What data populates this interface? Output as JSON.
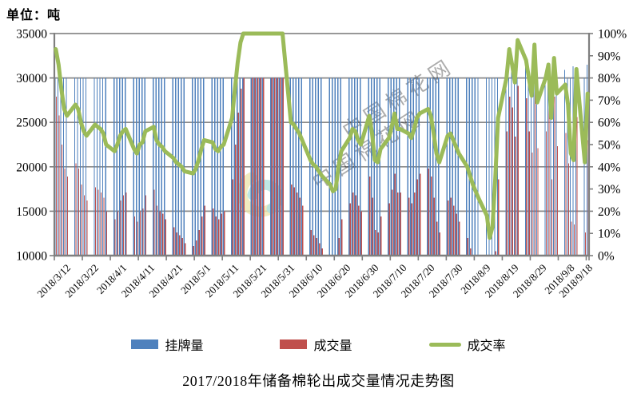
{
  "unit_label": "单位：吨",
  "title": "2017/2018年储备棉轮出成交量情况走势图",
  "legend": {
    "items": [
      {
        "label": "挂牌量",
        "type": "bar",
        "color": "#4F81BD"
      },
      {
        "label": "成交量",
        "type": "bar",
        "color": "#C0504D"
      },
      {
        "label": "成交率",
        "type": "line",
        "color": "#9BBB59"
      }
    ]
  },
  "watermark": {
    "text": "中国棉花网",
    "logo_colors": [
      "#EDE7B0",
      "#B3E4E0"
    ],
    "text_color": "#c9c9c9"
  },
  "chart_data": {
    "type": "bar+line combo",
    "title": "2017/2018年储备棉轮出成交量情况走势图",
    "unit": "吨",
    "grid": true,
    "legend_position": "bottom",
    "colors": {
      "gridline": "#8a8a8a",
      "axis": "#7f7f7f"
    },
    "x_axis": {
      "start_date": "2018/3/12",
      "end_date": "2018/9/18",
      "label_rotation_deg": -45,
      "tick_labels": [
        "2018/3/12",
        "2018/3/22",
        "2018/4/1",
        "2018/4/11",
        "2018/4/21",
        "2018/5/1",
        "2018/5/11",
        "2018/5/21",
        "2018/5/31",
        "2018/6/10",
        "2018/6/20",
        "2018/6/30",
        "2018/7/10",
        "2018/7/20",
        "2018/7/30",
        "2018/8/9",
        "2018/8/19",
        "2018/8/29",
        "2018/9/8",
        "2018/9/18"
      ]
    },
    "left_axis": {
      "min": 10000,
      "max": 35000,
      "step": 5000,
      "tick_labels": [
        "35000",
        "30000",
        "25000",
        "20000",
        "15000",
        "10000"
      ]
    },
    "right_axis": {
      "min": 0,
      "max": 100,
      "step": 10,
      "tick_labels": [
        "100%",
        "90%",
        "80%",
        "70%",
        "60%",
        "50%",
        "40%",
        "30%",
        "20%",
        "10%",
        "0%"
      ]
    },
    "dates": [
      "2018/3/12",
      "2018/3/13",
      "2018/3/14",
      "2018/3/15",
      "2018/3/16",
      "2018/3/19",
      "2018/3/20",
      "2018/3/21",
      "2018/3/22",
      "2018/3/23",
      "2018/3/26",
      "2018/3/27",
      "2018/3/28",
      "2018/3/29",
      "2018/3/30",
      "2018/4/2",
      "2018/4/3",
      "2018/4/4",
      "2018/4/5",
      "2018/4/6",
      "2018/4/9",
      "2018/4/10",
      "2018/4/11",
      "2018/4/12",
      "2018/4/13",
      "2018/4/16",
      "2018/4/17",
      "2018/4/18",
      "2018/4/19",
      "2018/4/20",
      "2018/4/23",
      "2018/4/24",
      "2018/4/25",
      "2018/4/26",
      "2018/4/27",
      "2018/4/30",
      "2018/5/1",
      "2018/5/2",
      "2018/5/3",
      "2018/5/4",
      "2018/5/7",
      "2018/5/8",
      "2018/5/9",
      "2018/5/10",
      "2018/5/11",
      "2018/5/14",
      "2018/5/15",
      "2018/5/16",
      "2018/5/17",
      "2018/5/18",
      "2018/5/21",
      "2018/5/22",
      "2018/5/23",
      "2018/5/24",
      "2018/5/25",
      "2018/5/28",
      "2018/5/29",
      "2018/5/30",
      "2018/5/31",
      "2018/6/1",
      "2018/6/4",
      "2018/6/5",
      "2018/6/6",
      "2018/6/7",
      "2018/6/8",
      "2018/6/11",
      "2018/6/12",
      "2018/6/13",
      "2018/6/14",
      "2018/6/15",
      "2018/6/18",
      "2018/6/19",
      "2018/6/20",
      "2018/6/21",
      "2018/6/22",
      "2018/6/25",
      "2018/6/26",
      "2018/6/27",
      "2018/6/28",
      "2018/6/29",
      "2018/7/2",
      "2018/7/3",
      "2018/7/4",
      "2018/7/5",
      "2018/7/6",
      "2018/7/9",
      "2018/7/10",
      "2018/7/11",
      "2018/7/12",
      "2018/7/13",
      "2018/7/16",
      "2018/7/17",
      "2018/7/18",
      "2018/7/19",
      "2018/7/20",
      "2018/7/23",
      "2018/7/24",
      "2018/7/25",
      "2018/7/26",
      "2018/7/27",
      "2018/7/30",
      "2018/7/31",
      "2018/8/1",
      "2018/8/2",
      "2018/8/3",
      "2018/8/6",
      "2018/8/7",
      "2018/8/8",
      "2018/8/9",
      "2018/8/10",
      "2018/8/13",
      "2018/8/14",
      "2018/8/15",
      "2018/8/16",
      "2018/8/17",
      "2018/8/20",
      "2018/8/21",
      "2018/8/22",
      "2018/8/23",
      "2018/8/24",
      "2018/8/27",
      "2018/8/28",
      "2018/8/29",
      "2018/8/30",
      "2018/8/31",
      "2018/9/3",
      "2018/9/4",
      "2018/9/5",
      "2018/9/6",
      "2018/9/7",
      "2018/9/10",
      "2018/9/11",
      "2018/9/12",
      "2018/9/13",
      "2018/9/14",
      "2018/9/17",
      "2018/9/18"
    ],
    "series": [
      {
        "name": "挂牌量",
        "type": "bar",
        "axis": "left",
        "color": "#4F81BD",
        "values": [
          30000,
          30000,
          30000,
          30000,
          30000,
          30000,
          30000,
          30000,
          30000,
          30000,
          30000,
          30000,
          30000,
          30000,
          30000,
          30000,
          30000,
          30000,
          30000,
          30000,
          30000,
          30000,
          30000,
          30000,
          30000,
          30000,
          30000,
          30000,
          30000,
          30000,
          30000,
          30000,
          30000,
          30000,
          30000,
          30000,
          30000,
          30000,
          30000,
          30000,
          30000,
          30000,
          30000,
          30000,
          30000,
          30000,
          30000,
          30000,
          30000,
          30000,
          30000,
          30000,
          30000,
          30000,
          30000,
          30000,
          30000,
          30000,
          30000,
          30000,
          30000,
          30000,
          30000,
          30000,
          30000,
          30000,
          30000,
          30000,
          30000,
          30000,
          30000,
          30000,
          30000,
          30000,
          30000,
          30000,
          30000,
          30000,
          30000,
          30000,
          30000,
          30000,
          30000,
          30000,
          30000,
          30000,
          30000,
          30000,
          30000,
          30000,
          30000,
          30000,
          30000,
          30000,
          30000,
          30000,
          30000,
          30000,
          30000,
          30000,
          30000,
          30000,
          30000,
          30000,
          30000,
          30000,
          30000,
          30000,
          30000,
          30000,
          30000,
          30000,
          30000,
          30000,
          30000,
          30000,
          30000,
          31000,
          30000,
          30000,
          31500,
          30000,
          30000,
          30000,
          32000,
          30000,
          31000,
          30000,
          31400,
          30500,
          30900,
          30000,
          30000,
          31300,
          30500,
          30000,
          31500
        ]
      },
      {
        "name": "成交量",
        "type": "bar",
        "axis": "left",
        "color": "#C0504D",
        "values": [
          27900,
          25800,
          22500,
          19800,
          18900,
          20400,
          19800,
          18000,
          16800,
          16200,
          17700,
          17400,
          17100,
          16500,
          15000,
          14100,
          15000,
          16200,
          16800,
          17100,
          14400,
          13800,
          15000,
          15300,
          16800,
          17400,
          15600,
          15000,
          14700,
          14100,
          13200,
          12600,
          12300,
          12000,
          11400,
          11100,
          11700,
          12900,
          14400,
          15600,
          15300,
          14400,
          14100,
          14700,
          15000,
          18600,
          22500,
          26100,
          28800,
          30000,
          30000,
          30000,
          30000,
          30000,
          30000,
          30000,
          30000,
          30000,
          30000,
          30000,
          18000,
          17700,
          17100,
          16500,
          15600,
          12900,
          12300,
          12000,
          11400,
          10800,
          9600,
          8700,
          9000,
          12000,
          14100,
          15900,
          17100,
          16800,
          15600,
          15000,
          18900,
          16500,
          12900,
          12600,
          14400,
          15900,
          17400,
          19200,
          17100,
          17100,
          16500,
          15900,
          17100,
          18600,
          19200,
          19800,
          18900,
          16500,
          13800,
          12600,
          16200,
          16500,
          15600,
          14700,
          13800,
          12000,
          10800,
          9600,
          8700,
          7800,
          5400,
          2400,
          3900,
          10500,
          18600,
          24000,
          27900,
          26700,
          23400,
          29100,
          27700,
          24000,
          21600,
          28500,
          22100,
          24000,
          26700,
          18600,
          27900,
          22300,
          23800,
          20400,
          13800,
          13500,
          25600,
          12600,
          23000
        ]
      },
      {
        "name": "成交率",
        "type": "line",
        "axis": "right",
        "color": "#9BBB59",
        "unit": "%",
        "values": [
          93,
          86,
          75,
          66,
          63,
          68,
          66,
          60,
          56,
          54,
          59,
          58,
          57,
          55,
          50,
          47,
          50,
          54,
          56,
          57,
          48,
          46,
          50,
          51,
          56,
          58,
          52,
          50,
          49,
          47,
          44,
          42,
          41,
          40,
          38,
          37,
          39,
          43,
          48,
          52,
          51,
          48,
          47,
          49,
          50,
          62,
          75,
          87,
          96,
          100,
          100,
          100,
          100,
          100,
          100,
          100,
          100,
          100,
          100,
          100,
          60,
          59,
          57,
          55,
          52,
          43,
          41,
          40,
          38,
          36,
          32,
          29,
          30,
          40,
          47,
          53,
          57,
          56,
          52,
          50,
          63,
          55,
          43,
          42,
          48,
          53,
          58,
          64,
          57,
          57,
          55,
          53,
          57,
          62,
          64,
          66,
          63,
          55,
          46,
          42,
          54,
          55,
          52,
          49,
          46,
          40,
          36,
          32,
          29,
          26,
          18,
          8,
          13,
          35,
          62,
          80,
          93,
          86,
          78,
          97,
          88,
          80,
          72,
          95,
          69,
          80,
          86,
          62,
          89,
          73,
          77,
          68,
          46,
          43,
          84,
          42,
          73
        ]
      }
    ]
  }
}
